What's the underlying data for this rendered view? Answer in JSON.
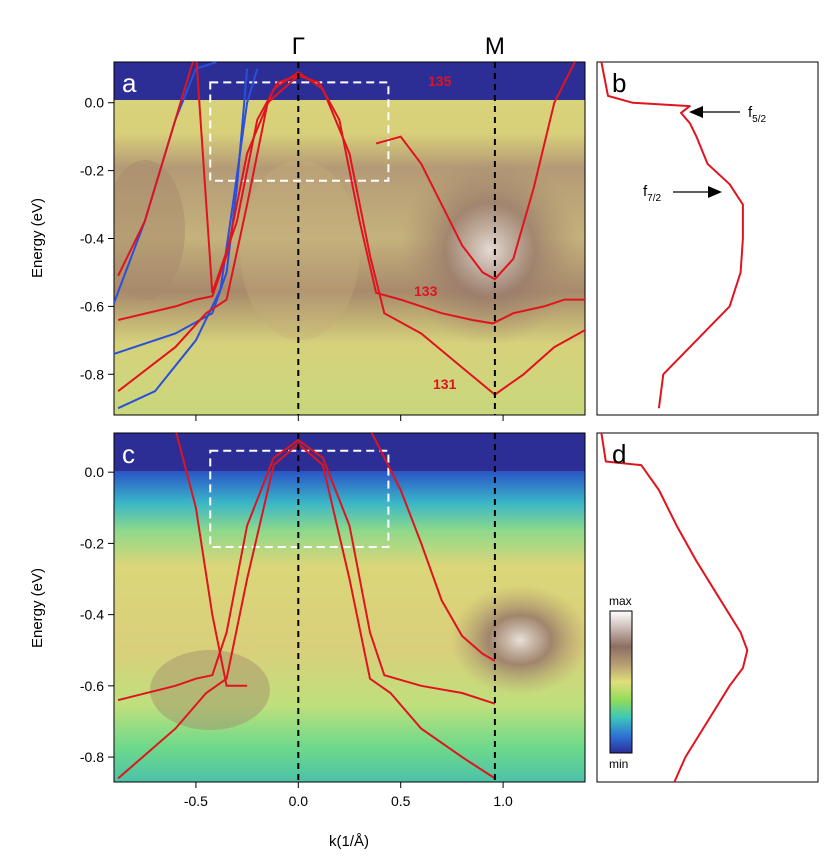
{
  "symmetry_points": [
    "Γ",
    "M"
  ],
  "panels": {
    "a": {
      "letter": "a",
      "band_labels": [
        "135",
        "133",
        "131"
      ]
    },
    "b": {
      "letter": "b",
      "annotations": [
        {
          "base": "f",
          "sub": "5/2"
        },
        {
          "base": "f",
          "sub": "7/2"
        }
      ]
    },
    "c": {
      "letter": "c"
    },
    "d": {
      "letter": "d"
    }
  },
  "colorbar": {
    "max_label": "max",
    "min_label": "min"
  },
  "chart_data": [
    {
      "type": "heatmap",
      "panel": "a",
      "xlabel": "",
      "ylabel": "Energy (eV)",
      "xlim": [
        -0.9,
        1.4
      ],
      "ylim": [
        -0.92,
        0.12
      ],
      "yticks": [
        0.0,
        -0.2,
        -0.4,
        -0.6,
        -0.8
      ],
      "ytick_labels": [
        "0.0",
        "-0.2",
        "-0.4",
        "-0.6",
        "-0.8"
      ],
      "vlines_k": [
        0.0,
        0.96
      ],
      "roi_box": {
        "k": [
          -0.43,
          0.44
        ],
        "e": [
          -0.23,
          0.06
        ]
      },
      "red_bands": [
        {
          "name": "135",
          "k": [
            -0.88,
            -0.75,
            -0.6,
            -0.5,
            -0.42,
            -0.3,
            -0.2,
            -0.1,
            0.0,
            0.1,
            0.2,
            0.3,
            0.38,
            0.5,
            0.7,
            0.85,
            0.95,
            1.05,
            1.2,
            1.3,
            1.4
          ],
          "e": [
            -0.51,
            -0.35,
            -0.05,
            0.15,
            -0.56,
            -0.35,
            -0.05,
            0.06,
            0.08,
            0.06,
            -0.05,
            -0.35,
            -0.56,
            -0.58,
            -0.62,
            -0.64,
            -0.65,
            -0.62,
            -0.6,
            -0.58,
            -0.58
          ]
        },
        {
          "name": "133",
          "k": [
            0.38,
            0.5,
            0.6,
            0.7,
            0.8,
            0.9,
            0.96,
            1.05,
            1.15,
            1.25,
            1.35
          ],
          "e": [
            -0.12,
            -0.1,
            -0.18,
            -0.3,
            -0.42,
            -0.5,
            -0.52,
            -0.46,
            -0.25,
            0.0,
            0.12
          ]
        },
        {
          "name": "131",
          "k": [
            -0.88,
            -0.6,
            -0.5,
            -0.42,
            -0.35,
            -0.25,
            -0.12,
            0.0,
            0.12,
            0.25,
            0.35,
            0.42,
            0.6,
            0.8,
            0.96,
            1.1,
            1.25,
            1.4
          ],
          "e": [
            -0.64,
            -0.6,
            -0.58,
            -0.57,
            -0.45,
            -0.15,
            0.04,
            0.09,
            0.04,
            -0.15,
            -0.45,
            -0.62,
            -0.68,
            -0.78,
            -0.86,
            -0.8,
            -0.72,
            -0.67
          ]
        },
        {
          "name": "",
          "k": [
            -0.88,
            -0.6,
            -0.45,
            -0.35,
            -0.25,
            -0.15,
            0.0
          ],
          "e": [
            -0.85,
            -0.72,
            -0.62,
            -0.58,
            -0.3,
            0.0,
            0.08
          ]
        }
      ],
      "blue_bands": [
        {
          "k": [
            -0.9,
            -0.75,
            -0.6,
            -0.5,
            -0.4
          ],
          "e": [
            -0.59,
            -0.35,
            -0.05,
            0.1,
            0.12
          ]
        },
        {
          "k": [
            -0.9,
            -0.6,
            -0.42,
            -0.35,
            -0.3,
            -0.25
          ],
          "e": [
            -0.74,
            -0.68,
            -0.62,
            -0.5,
            -0.25,
            0.1
          ]
        },
        {
          "k": [
            -0.88,
            -0.7,
            -0.5,
            -0.38,
            -0.32,
            -0.25,
            -0.2
          ],
          "e": [
            -0.9,
            -0.85,
            -0.7,
            -0.55,
            -0.3,
            0.0,
            0.1
          ]
        }
      ]
    },
    {
      "type": "line",
      "panel": "b",
      "description_axis": "energy vertical, intensity horizontal",
      "ylim": [
        -0.92,
        0.12
      ],
      "series": [
        {
          "e": [
            0.12,
            0.02,
            0.0,
            -0.01,
            -0.03,
            -0.06,
            -0.1,
            -0.18,
            -0.24,
            -0.3,
            -0.4,
            -0.5,
            -0.6,
            -0.7,
            -0.8,
            -0.9
          ],
          "i": [
            0.02,
            0.05,
            0.16,
            0.42,
            0.38,
            0.42,
            0.45,
            0.5,
            0.6,
            0.66,
            0.66,
            0.65,
            0.6,
            0.45,
            0.3,
            0.28
          ]
        }
      ]
    },
    {
      "type": "heatmap",
      "panel": "c",
      "xlabel": "k(1/Å)",
      "ylabel": "Energy (eV)",
      "xlim": [
        -0.9,
        1.4
      ],
      "ylim": [
        -0.87,
        0.11
      ],
      "xticks": [
        -0.5,
        0.0,
        0.5,
        1.0
      ],
      "xtick_labels": [
        "-0.5",
        "0.0",
        "0.5",
        "1.0"
      ],
      "yticks": [
        0.0,
        -0.2,
        -0.4,
        -0.6,
        -0.8
      ],
      "ytick_labels": [
        "0.0",
        "-0.2",
        "-0.4",
        "-0.6",
        "-0.8"
      ],
      "vlines_k": [
        0.0,
        0.96
      ],
      "roi_box": {
        "k": [
          -0.43,
          0.44
        ],
        "e": [
          -0.21,
          0.06
        ]
      },
      "red_bands": [
        {
          "k": [
            -0.88,
            -0.6,
            -0.5,
            -0.42,
            -0.35,
            -0.25,
            -0.12,
            0.0,
            0.12,
            0.25,
            0.35,
            0.42,
            0.6,
            0.8,
            0.96
          ],
          "e": [
            -0.64,
            -0.6,
            -0.58,
            -0.57,
            -0.45,
            -0.15,
            0.04,
            0.09,
            0.04,
            -0.15,
            -0.45,
            -0.57,
            -0.6,
            -0.62,
            -0.65
          ]
        },
        {
          "k": [
            -0.88,
            -0.6,
            -0.45,
            -0.35,
            -0.25,
            -0.12,
            0.0,
            0.12,
            0.25,
            0.35,
            0.45,
            0.6,
            0.8,
            0.96
          ],
          "e": [
            -0.86,
            -0.72,
            -0.62,
            -0.58,
            -0.3,
            0.02,
            0.08,
            0.02,
            -0.3,
            -0.58,
            -0.62,
            -0.72,
            -0.8,
            -0.86
          ]
        },
        {
          "k": [
            -0.6,
            -0.5,
            -0.42,
            -0.35,
            -0.25
          ],
          "e": [
            0.12,
            -0.1,
            -0.4,
            -0.6,
            -0.6
          ]
        },
        {
          "k": [
            0.35,
            0.5,
            0.6,
            0.7,
            0.8,
            0.9,
            0.96
          ],
          "e": [
            0.12,
            -0.05,
            -0.2,
            -0.36,
            -0.46,
            -0.51,
            -0.53
          ]
        }
      ]
    },
    {
      "type": "line",
      "panel": "d",
      "description_axis": "energy vertical, intensity horizontal",
      "ylim": [
        -0.87,
        0.11
      ],
      "series": [
        {
          "e": [
            0.11,
            0.03,
            0.02,
            -0.05,
            -0.15,
            -0.25,
            -0.35,
            -0.45,
            -0.5,
            -0.55,
            -0.6,
            -0.7,
            -0.8,
            -0.87
          ],
          "i": [
            0.02,
            0.04,
            0.2,
            0.28,
            0.36,
            0.45,
            0.55,
            0.65,
            0.68,
            0.66,
            0.6,
            0.5,
            0.4,
            0.35
          ]
        }
      ]
    }
  ]
}
